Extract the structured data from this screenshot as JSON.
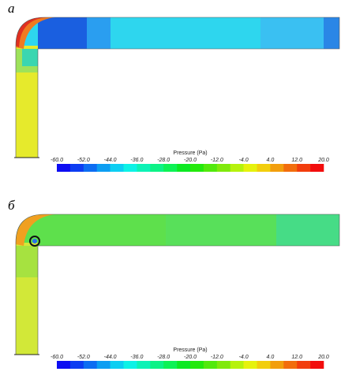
{
  "panels": [
    {
      "label": "а",
      "colorbar": {
        "title": "Pressure (Pa)",
        "ticks": [
          "-60.0",
          "-52.0",
          "-44.0",
          "-36.0",
          "-28.0",
          "-20.0",
          "-12.0",
          "-4.0",
          "4.0",
          "12.0",
          "20.0"
        ]
      }
    },
    {
      "label": "б",
      "colorbar": {
        "title": "Pressure (Pa)",
        "ticks": [
          "-60.0",
          "-52.0",
          "-44.0",
          "-36.0",
          "-28.0",
          "-20.0",
          "-12.0",
          "-4.0",
          "4.0",
          "12.0",
          "20.0"
        ]
      }
    }
  ]
}
